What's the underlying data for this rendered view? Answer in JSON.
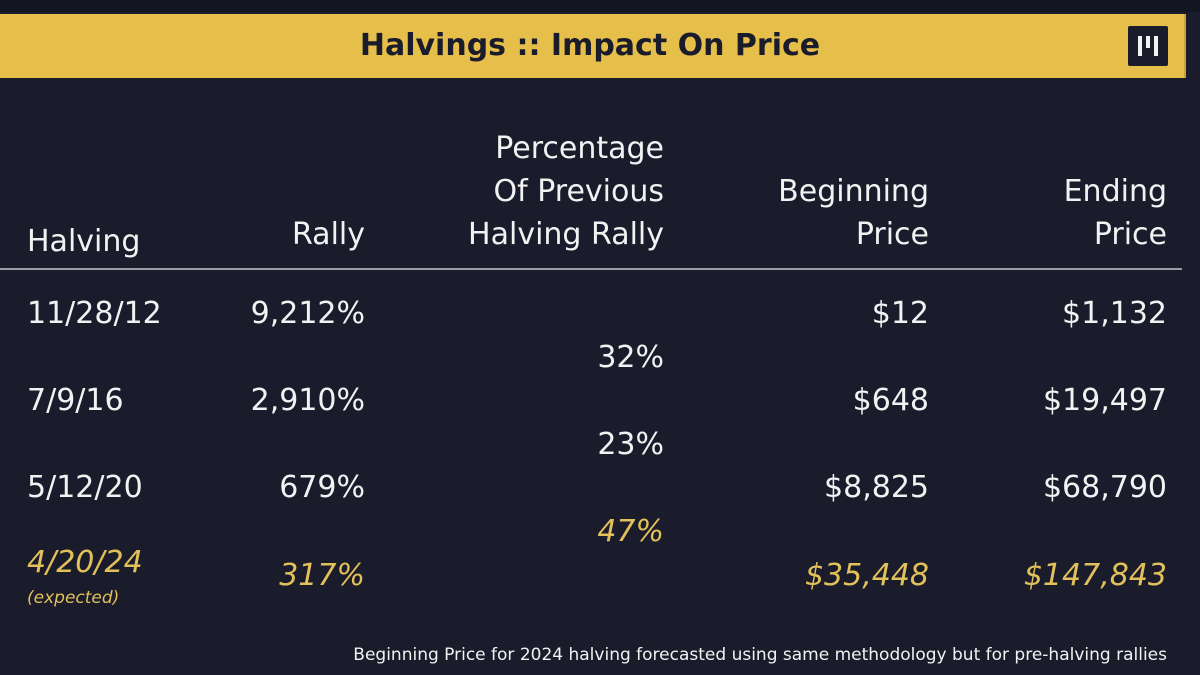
{
  "banner": {
    "title": "Halvings :: Impact On Price",
    "logo_text": "ɪʟɪ"
  },
  "table": {
    "headers": {
      "halving": "Halving",
      "rally": "Rally",
      "percentage_line1": "Percentage",
      "percentage_line2": "Of Previous",
      "percentage_line3": "Halving Rally",
      "beginning_line1": "Beginning",
      "beginning_line2": "Price",
      "ending_line1": "Ending",
      "ending_line2": "Price"
    },
    "rows": [
      {
        "halving": "11/28/12",
        "rally": "9,212%",
        "beginning_price": "$12",
        "ending_price": "$1,132"
      },
      {
        "halving": "7/9/16",
        "rally": "2,910%",
        "beginning_price": "$648",
        "ending_price": "$19,497"
      },
      {
        "halving": "5/12/20",
        "rally": "679%",
        "beginning_price": "$8,825",
        "ending_price": "$68,790"
      },
      {
        "halving": "4/20/24",
        "halving_note": "(expected)",
        "rally": "317%",
        "beginning_price": "$35,448",
        "ending_price": "$147,843"
      }
    ],
    "percentages": [
      "32%",
      "23%",
      "47%"
    ]
  },
  "footnote": "Beginning Price for 2024 halving forecasted using same methodology but for pre-halving rallies",
  "colors": {
    "background": "#1a1b2b",
    "banner": "#e6bf4a",
    "text": "#f2f2f2",
    "expected_text": "#e2c15a"
  }
}
